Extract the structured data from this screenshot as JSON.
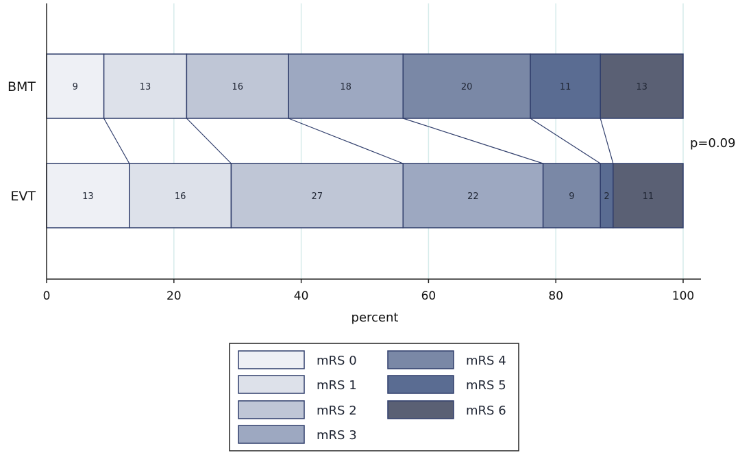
{
  "chart_data": {
    "type": "bar",
    "orientation": "horizontal",
    "stacked": "percent",
    "categories": [
      "BMT",
      "EVT"
    ],
    "series": [
      {
        "name": "mRS 0",
        "values": [
          9,
          13
        ],
        "color": "#eef0f5"
      },
      {
        "name": "mRS 1",
        "values": [
          13,
          16
        ],
        "color": "#dde1ea"
      },
      {
        "name": "mRS 2",
        "values": [
          16,
          27
        ],
        "color": "#bfc6d6"
      },
      {
        "name": "mRS 3",
        "values": [
          18,
          22
        ],
        "color": "#9da8c1"
      },
      {
        "name": "mRS 4",
        "values": [
          20,
          9
        ],
        "color": "#7a88a6"
      },
      {
        "name": "mRS 5",
        "values": [
          11,
          2
        ],
        "color": "#5a6c92"
      },
      {
        "name": "mRS 6",
        "values": [
          13,
          11
        ],
        "color": "#5a6074"
      }
    ],
    "xlabel": "percent",
    "xlim": [
      0,
      100
    ],
    "xticks": [
      0,
      20,
      40,
      60,
      80,
      100
    ],
    "annotation": "p=0.09",
    "grid": "vertical",
    "legend_position": "bottom"
  }
}
